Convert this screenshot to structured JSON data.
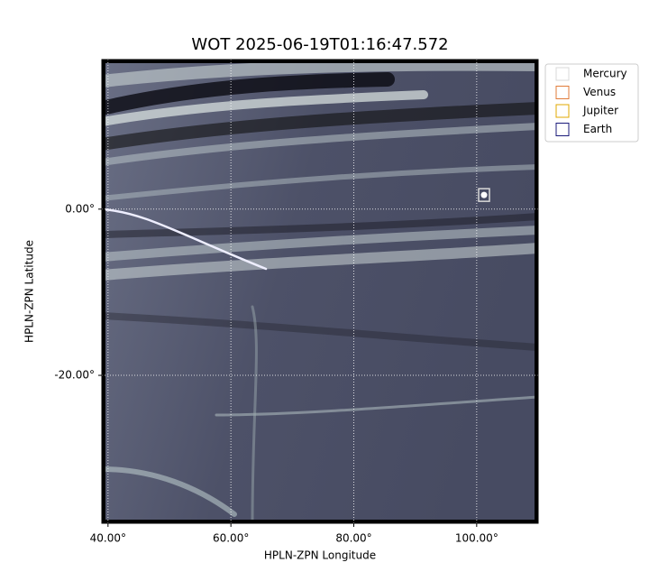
{
  "chart_data": {
    "type": "image",
    "title": "WOT 2025-06-19T01:16:47.572",
    "x_label": "HPLN-ZPN Longitude",
    "y_label": "HPLN-ZPN Latitude",
    "xlim": [
      39,
      110
    ],
    "ylim": [
      -37.8,
      18
    ],
    "xticks": [
      {
        "value": 40,
        "label": "40.00°"
      },
      {
        "value": 60,
        "label": "60.00°"
      },
      {
        "value": 80,
        "label": "80.00°"
      },
      {
        "value": 100,
        "label": "100.00°"
      }
    ],
    "yticks": [
      {
        "value": 0,
        "label": "0.00°"
      },
      {
        "value": -20,
        "label": "-20.00°"
      }
    ],
    "grid": true,
    "legend": "upper right outside",
    "series": [
      {
        "name": "Mercury",
        "color": "#d9d9d9",
        "x": [
          101.2
        ],
        "values": [
          1.7
        ]
      },
      {
        "name": "Venus",
        "color": "#e07b39"
      },
      {
        "name": "Jupiter",
        "color": "#e0a800"
      },
      {
        "name": "Earth",
        "color": "#1a1a7a"
      }
    ]
  }
}
